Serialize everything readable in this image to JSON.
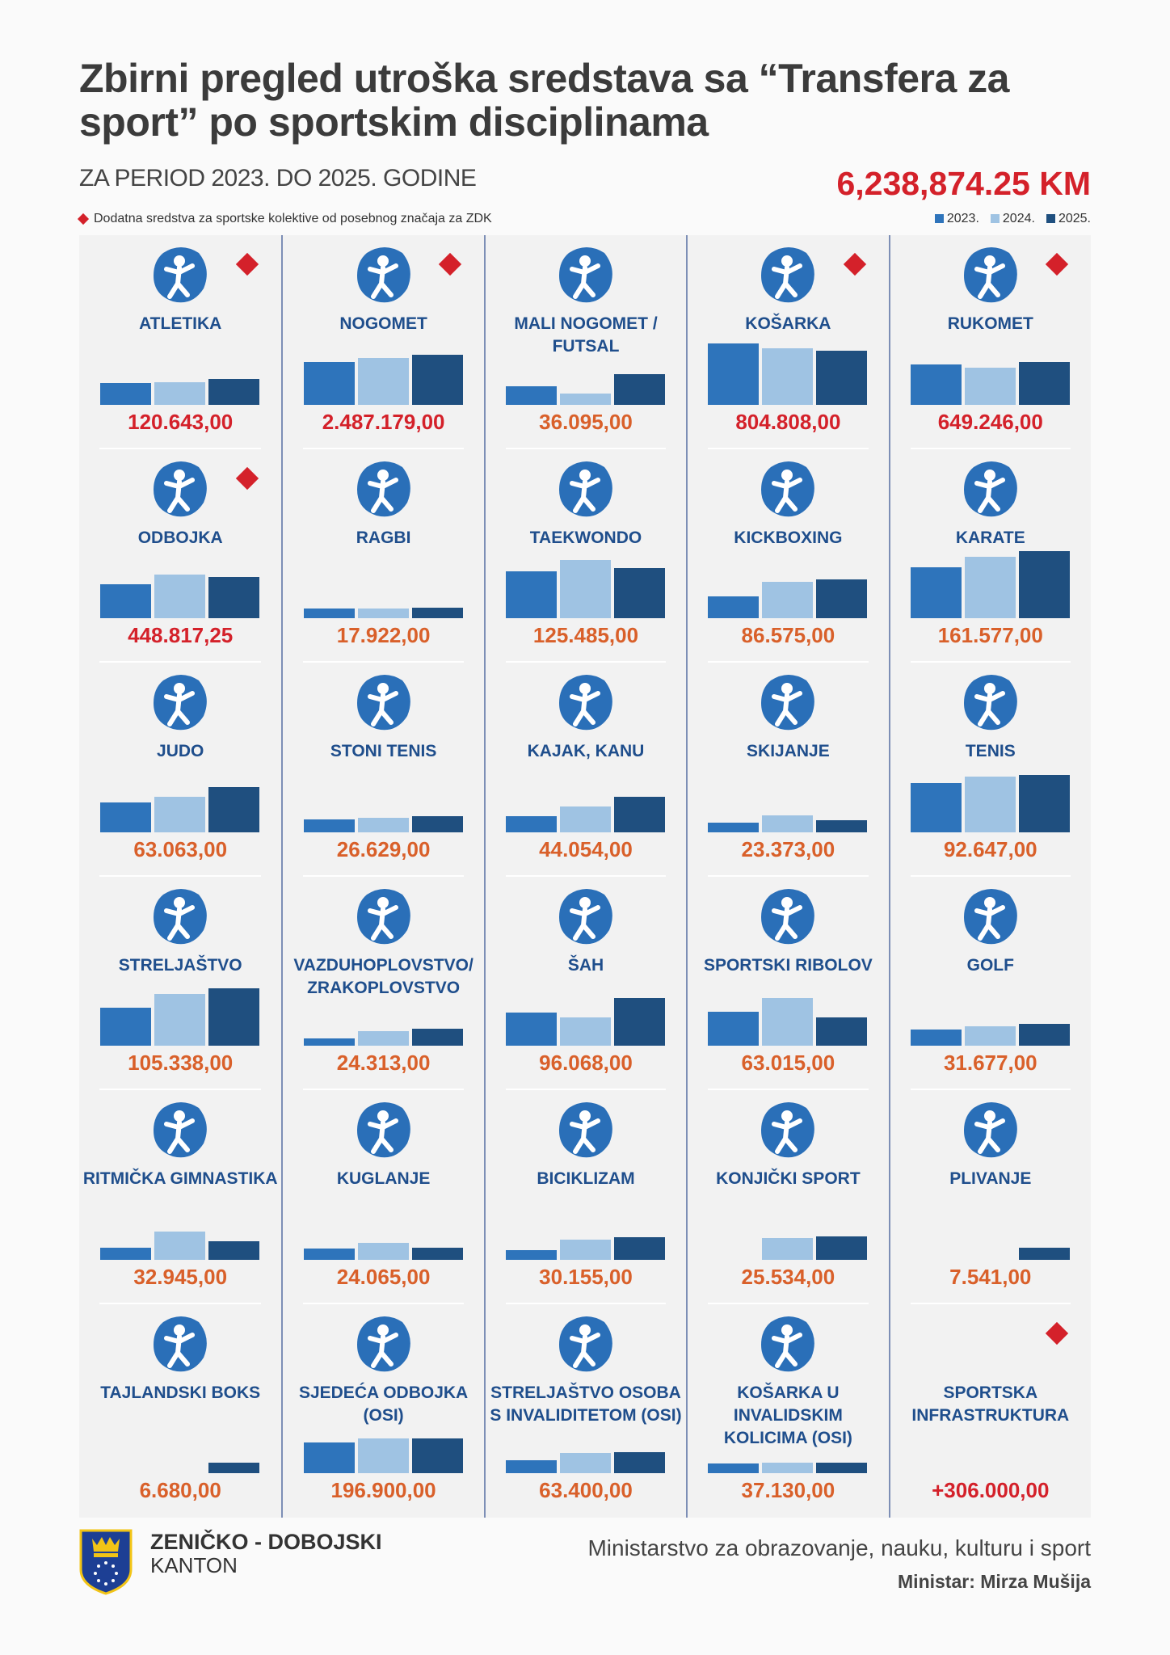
{
  "header": {
    "title": "Zbirni pregled utroška sredstava sa “Transfera za sport” po sportskim disciplinama",
    "subtitle": "ZA PERIOD 2023. DO 2025. GODINE",
    "total": "6,238,874.25 KM",
    "note": "Dodatna sredstva za sportske kolektive od posebnog značaja za ZDK",
    "legend": [
      {
        "label": "2023.",
        "color": "#2e74bb"
      },
      {
        "label": "2024.",
        "color": "#9fc3e3"
      },
      {
        "label": "2025.",
        "color": "#1f4f7f"
      }
    ]
  },
  "colors": {
    "accent_red": "#d4212a",
    "value_orange": "#d9602a",
    "icon_blue": "#2a6fb8"
  },
  "bar_level_note_units": "relative bar heights within the graphic (largest bar = 63)",
  "sports": [
    {
      "name": "ATLETIKA",
      "value": "120.643,00",
      "special": true,
      "bars": [
        20,
        21,
        24
      ]
    },
    {
      "name": "NOGOMET",
      "value": "2.487.179,00",
      "special": true,
      "bars": [
        40,
        44,
        47
      ]
    },
    {
      "name": "MALI NOGOMET / FUTSAL",
      "value": "36.095,00",
      "special": false,
      "bars": [
        17,
        10,
        29
      ]
    },
    {
      "name": "KOŠARKA",
      "value": "804.808,00",
      "special": true,
      "bars": [
        58,
        53,
        51
      ]
    },
    {
      "name": "RUKOMET",
      "value": "649.246,00",
      "special": true,
      "bars": [
        38,
        35,
        40
      ]
    },
    {
      "name": "ODBOJKA",
      "value": "448.817,25",
      "special": true,
      "bars": [
        32,
        41,
        39
      ]
    },
    {
      "name": "RAGBI",
      "value": "17.922,00",
      "special": false,
      "bars": [
        9,
        9,
        10
      ]
    },
    {
      "name": "TAEKWONDO",
      "value": "125.485,00",
      "special": false,
      "bars": [
        44,
        55,
        47
      ]
    },
    {
      "name": "KICKBOXING",
      "value": "86.575,00",
      "special": false,
      "bars": [
        21,
        34,
        37
      ]
    },
    {
      "name": "KARATE",
      "value": "161.577,00",
      "special": false,
      "bars": [
        48,
        58,
        63
      ]
    },
    {
      "name": "JUDO",
      "value": "63.063,00",
      "special": false,
      "bars": [
        28,
        33,
        42
      ]
    },
    {
      "name": "STONI TENIS",
      "value": "26.629,00",
      "special": false,
      "bars": [
        12,
        13,
        15
      ]
    },
    {
      "name": "KAJAK, KANU",
      "value": "44.054,00",
      "special": false,
      "bars": [
        15,
        24,
        33
      ]
    },
    {
      "name": "SKIJANJE",
      "value": "23.373,00",
      "special": false,
      "bars": [
        9,
        16,
        11
      ]
    },
    {
      "name": "TENIS",
      "value": "92.647,00",
      "special": false,
      "bars": [
        46,
        52,
        54
      ]
    },
    {
      "name": "STRELJAŠTVO",
      "value": "105.338,00",
      "special": false,
      "bars": [
        36,
        49,
        54
      ]
    },
    {
      "name": "VAZDUHOPLOVSTVO/ ZRAKOPLOVSTVO",
      "value": "24.313,00",
      "special": false,
      "bars": [
        7,
        14,
        16
      ]
    },
    {
      "name": "ŠAH",
      "value": "96.068,00",
      "special": false,
      "bars": [
        31,
        27,
        45
      ]
    },
    {
      "name": "SPORTSKI RIBOLOV",
      "value": "63.015,00",
      "special": false,
      "bars": [
        32,
        45,
        27
      ]
    },
    {
      "name": "GOLF",
      "value": "31.677,00",
      "special": false,
      "bars": [
        15,
        18,
        21
      ]
    },
    {
      "name": "RITMIČKA GIMNASTIKA",
      "value": "32.945,00",
      "special": false,
      "bars": [
        11,
        26,
        17
      ]
    },
    {
      "name": "KUGLANJE",
      "value": "24.065,00",
      "special": false,
      "bars": [
        10,
        16,
        11
      ]
    },
    {
      "name": "BICIKLIZAM",
      "value": "30.155,00",
      "special": false,
      "bars": [
        9,
        19,
        21
      ]
    },
    {
      "name": "KONJIČKI SPORT",
      "value": "25.534,00",
      "special": false,
      "bars": [
        0,
        20,
        22
      ]
    },
    {
      "name": "PLIVANJE",
      "value": "7.541,00",
      "special": false,
      "bars": [
        0,
        0,
        11
      ]
    },
    {
      "name": "TAJLANDSKI BOKS",
      "value": "6.680,00",
      "special": false,
      "bars": [
        0,
        0,
        10
      ]
    },
    {
      "name": "SJEDEĆA ODBOJKA (OSI)",
      "value": "196.900,00",
      "special": false,
      "bars": [
        29,
        33,
        33
      ]
    },
    {
      "name": "STRELJAŠTVO OSOBA S INVALIDITETOM (OSI)",
      "value": "63.400,00",
      "special": false,
      "bars": [
        12,
        19,
        20
      ]
    },
    {
      "name": "KOŠARKA U INVALIDSKIM KOLICIMA (OSI)",
      "value": "37.130,00",
      "special": false,
      "bars": [
        9,
        10,
        10
      ]
    },
    {
      "name": "SPORTSKA INFRASTRUKTURA",
      "value": "+306.000,00",
      "special": true,
      "bars": [
        0,
        0,
        0
      ],
      "no_icon": true
    }
  ],
  "footer": {
    "org_line1": "ZENIČKO - DOBOJSKI",
    "org_line2": "KANTON",
    "ministry": "Ministarstvo za obrazovanje, nauku, kulturu i sport",
    "minister": "Ministar: Mirza Mušija"
  }
}
